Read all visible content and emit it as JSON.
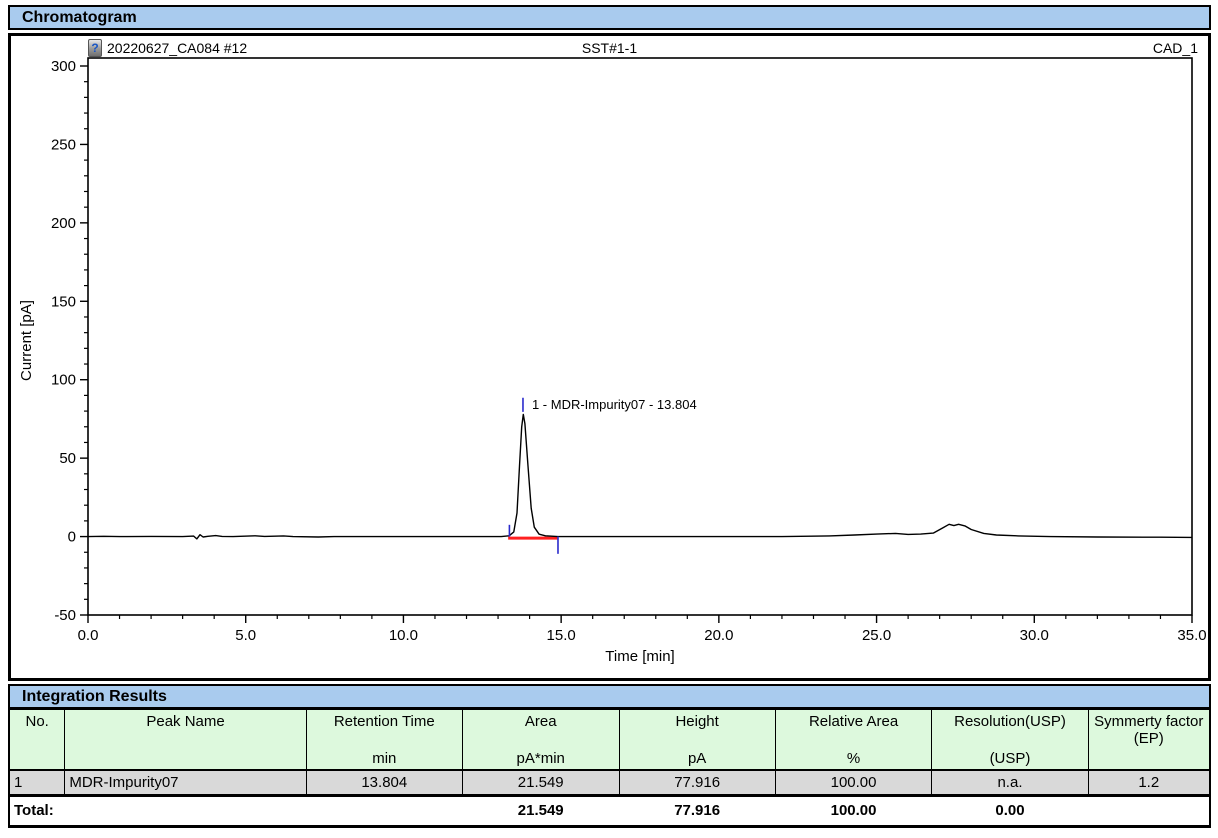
{
  "window": {
    "section_titles": {
      "chromatogram": "Chromatogram",
      "integration": "Integration Results"
    }
  },
  "chart_header": {
    "injection_name": "20220627_CA084 #12",
    "sample_name": "SST#1-1",
    "channel_name": "CAD_1",
    "icon": "vial-question-icon",
    "icon_glyph": "?"
  },
  "colors": {
    "section_bar_blue": "#A9CBEE",
    "table_header_green": "#DDF9DD",
    "table_row_gray": "#D9D9D9",
    "trace_black": "#000000",
    "peak_baseline_red": "#FF2020",
    "integration_marker_blue": "#2A2ACC"
  },
  "chart_data": {
    "type": "line",
    "title": "",
    "xlabel": "Time [min]",
    "ylabel": "Current [pA]",
    "xlim": [
      0,
      35
    ],
    "ylim": [
      -50,
      300
    ],
    "x_major_step": 5,
    "x_minor_step": 1,
    "y_major_step": 50,
    "y_minor_step": 10,
    "x_tick_labels": [
      "0.0",
      "5.0",
      "10.0",
      "15.0",
      "20.0",
      "25.0",
      "30.0",
      "35.0"
    ],
    "y_tick_labels": [
      "300",
      "250",
      "200",
      "150",
      "100",
      "50",
      "0",
      "-50"
    ],
    "grid": false,
    "legend": "none",
    "series": [
      {
        "name": "CAD_1",
        "points": [
          [
            0,
            0
          ],
          [
            0.5,
            0.2
          ],
          [
            1,
            0
          ],
          [
            2,
            0.1
          ],
          [
            3,
            0
          ],
          [
            3.35,
            0.3
          ],
          [
            3.45,
            -1.5
          ],
          [
            3.55,
            1.2
          ],
          [
            3.65,
            -0.3
          ],
          [
            3.8,
            0.2
          ],
          [
            4.05,
            0.6
          ],
          [
            4.25,
            0.1
          ],
          [
            4.6,
            0
          ],
          [
            5.3,
            0.5
          ],
          [
            5.6,
            0.1
          ],
          [
            6.2,
            0.4
          ],
          [
            6.5,
            0
          ],
          [
            7.3,
            -0.3
          ],
          [
            7.8,
            0
          ],
          [
            9,
            0
          ],
          [
            11,
            0
          ],
          [
            13.1,
            0
          ],
          [
            13.35,
            0.5
          ],
          [
            13.5,
            3
          ],
          [
            13.6,
            15
          ],
          [
            13.68,
            45
          ],
          [
            13.75,
            70
          ],
          [
            13.8,
            77.9
          ],
          [
            13.85,
            72
          ],
          [
            13.95,
            45
          ],
          [
            14.05,
            18
          ],
          [
            14.15,
            6
          ],
          [
            14.3,
            1.5
          ],
          [
            14.5,
            0.5
          ],
          [
            14.9,
            0
          ],
          [
            16,
            0
          ],
          [
            18,
            0
          ],
          [
            20,
            0
          ],
          [
            22,
            0
          ],
          [
            23.5,
            0.4
          ],
          [
            24.3,
            1.0
          ],
          [
            25.0,
            1.6
          ],
          [
            25.6,
            2.0
          ],
          [
            26.0,
            1.4
          ],
          [
            26.4,
            1.6
          ],
          [
            26.8,
            2.2
          ],
          [
            27.1,
            5.5
          ],
          [
            27.3,
            7.8
          ],
          [
            27.45,
            7.0
          ],
          [
            27.6,
            7.8
          ],
          [
            27.8,
            6.8
          ],
          [
            28.0,
            4.5
          ],
          [
            28.4,
            2.0
          ],
          [
            28.8,
            1.0
          ],
          [
            29.5,
            0.4
          ],
          [
            30.5,
            0
          ],
          [
            32,
            -0.3
          ],
          [
            34,
            -0.4
          ],
          [
            35,
            -0.5
          ]
        ]
      }
    ],
    "peak_baseline": {
      "x1": 13.32,
      "x2": 14.88,
      "y": -1
    },
    "integration_markers": [
      {
        "x": 13.36,
        "y1": 0,
        "y2": 7.5
      },
      {
        "x": 14.9,
        "y1": -11,
        "y2": 0
      },
      {
        "x": 13.79,
        "y1": 79.5,
        "y2": 88.5
      }
    ],
    "peak_label": {
      "text": "1 - MDR-Impurity07 - 13.804",
      "x": 13.79,
      "y": 84
    }
  },
  "table": {
    "title": "Integration Results",
    "columns": [
      {
        "name": "No.",
        "unit": "",
        "slug": "no",
        "width": "4.65%"
      },
      {
        "name": "Peak Name",
        "unit": "",
        "slug": "peak-name",
        "width": "20.1%"
      },
      {
        "name": "Retention Time",
        "unit": "min",
        "slug": "retention-time",
        "width": "13.0%"
      },
      {
        "name": "Area",
        "unit": "pA*min",
        "slug": "area",
        "width": "13.05%"
      },
      {
        "name": "Height",
        "unit": "pA",
        "slug": "height",
        "width": "13.0%"
      },
      {
        "name": "Relative Area",
        "unit": "%",
        "slug": "relative-area",
        "width": "13.05%"
      },
      {
        "name": "Resolution(USP)",
        "unit": "(USP)",
        "slug": "resolution-usp",
        "width": "13.0%"
      },
      {
        "name": "Symmerty factor (EP)",
        "unit": "",
        "slug": "symmetry-factor-ep",
        "width": "10.15%"
      }
    ],
    "rows": [
      [
        "1",
        "MDR-Impurity07",
        "13.804",
        "21.549",
        "77.916",
        "100.00",
        "n.a.",
        "1.2"
      ]
    ],
    "total": {
      "label": "Total:",
      "values": [
        "21.549",
        "77.916",
        "100.00",
        "0.00",
        ""
      ]
    }
  }
}
